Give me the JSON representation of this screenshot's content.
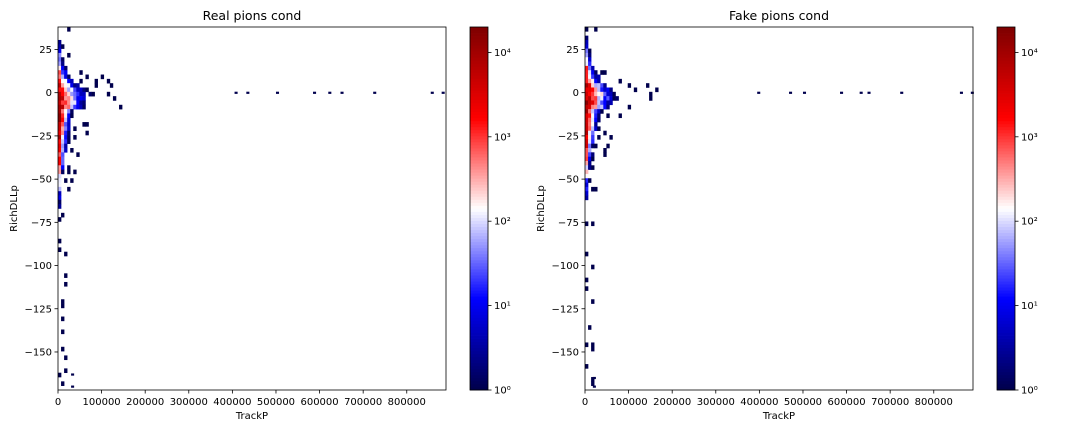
{
  "chart_data": [
    {
      "type": "heatmap",
      "title": "Real pions cond",
      "xlabel": "TrackP",
      "ylabel": "RichDLLp",
      "xlim": [
        0,
        890000
      ],
      "ylim": [
        -172,
        38
      ],
      "x_ticks": [
        0,
        100000,
        200000,
        300000,
        400000,
        500000,
        600000,
        700000,
        800000
      ],
      "x_tick_labels": [
        "0",
        "100000",
        "200000",
        "300000",
        "400000",
        "500000",
        "600000",
        "700000",
        "800000"
      ],
      "y_ticks": [
        25,
        0,
        -25,
        -50,
        -75,
        -100,
        -125,
        -150
      ],
      "y_tick_labels": [
        "25",
        "0",
        "−25",
        "−50",
        "−75",
        "−100",
        "−125",
        "−150"
      ],
      "colorbar": {
        "scale": "log",
        "min": 1,
        "max": 20000,
        "ticks": [
          1,
          10,
          100,
          1000,
          10000
        ],
        "tick_labels": [
          "10⁰",
          "10¹",
          "10²",
          "10³",
          "10⁴"
        ],
        "colormap": "seismic"
      },
      "density_peak": {
        "x": 5000,
        "y": -20
      },
      "tail_points_y0": [
        405000,
        432000,
        500000,
        585000,
        620000,
        648000,
        723000,
        855000,
        880000
      ],
      "extra_points": [
        [
          30000,
          -163
        ],
        [
          30000,
          -170
        ]
      ]
    },
    {
      "type": "heatmap",
      "title": "Fake pions cond",
      "xlabel": "TrackP",
      "ylabel": "RichDLLp",
      "xlim": [
        0,
        890000
      ],
      "ylim": [
        -172,
        38
      ],
      "x_ticks": [
        0,
        100000,
        200000,
        300000,
        400000,
        500000,
        600000,
        700000,
        800000
      ],
      "x_tick_labels": [
        "0",
        "100000",
        "200000",
        "300000",
        "400000",
        "500000",
        "600000",
        "700000",
        "800000"
      ],
      "y_ticks": [
        25,
        0,
        -25,
        -50,
        -75,
        -100,
        -125,
        -150
      ],
      "y_tick_labels": [
        "25",
        "0",
        "−25",
        "−50",
        "−75",
        "−100",
        "−125",
        "−150"
      ],
      "colorbar": {
        "scale": "log",
        "min": 1,
        "max": 20000,
        "ticks": [
          1,
          10,
          100,
          1000,
          10000
        ],
        "tick_labels": [
          "10⁰",
          "10¹",
          "10²",
          "10³",
          "10⁴"
        ],
        "colormap": "seismic"
      },
      "density_peak": {
        "x": 5000,
        "y": -15
      },
      "tail_points_y0": [
        395000,
        468000,
        500000,
        585000,
        630000,
        648000,
        723000,
        860000,
        885000
      ],
      "extra_points": [
        [
          18000,
          -165
        ],
        [
          18000,
          -170
        ]
      ]
    }
  ]
}
